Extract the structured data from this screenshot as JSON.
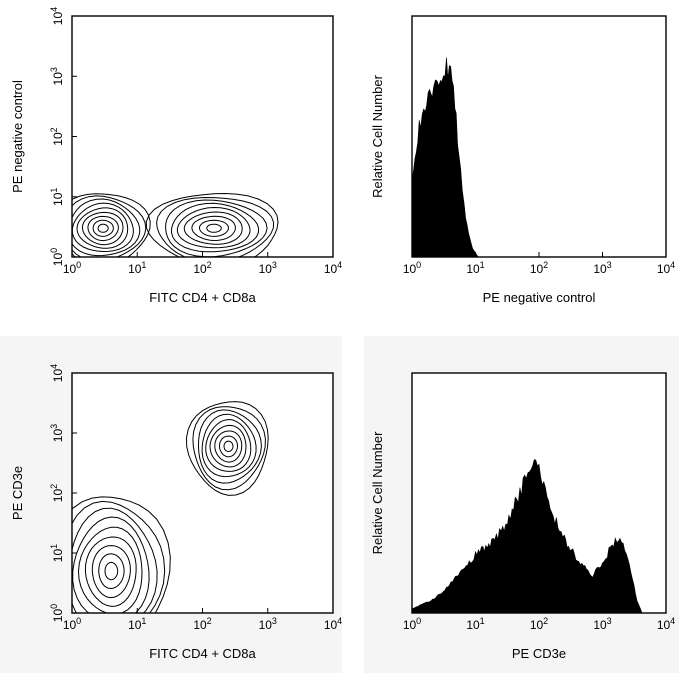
{
  "chart_data": [
    {
      "type": "contour",
      "xlabel": "FITC CD4 + CD8a",
      "ylabel": "PE negative control",
      "x_scale": "log",
      "y_scale": "log",
      "xlim": [
        1,
        10000
      ],
      "ylim": [
        1,
        10000
      ],
      "x_ticks": [
        1,
        10,
        100,
        1000,
        10000
      ],
      "y_ticks": [
        1,
        10,
        100,
        1000,
        10000
      ],
      "populations": [
        {
          "x_center": 3,
          "y_center": 3,
          "x_range": [
            1,
            15
          ],
          "y_range": [
            1,
            12
          ]
        },
        {
          "x_center": 150,
          "y_center": 3,
          "x_range": [
            15,
            600
          ],
          "y_range": [
            1,
            12
          ]
        }
      ]
    },
    {
      "type": "histogram",
      "xlabel": "PE negative control",
      "ylabel": "Relative Cell Number",
      "x_scale": "log",
      "xlim": [
        1,
        10000
      ],
      "x_ticks": [
        1,
        10,
        100,
        1000,
        10000
      ],
      "x": [
        1.0,
        1.3,
        1.7,
        2.2,
        2.8,
        3.5,
        4.5,
        5.5,
        7.0,
        9.0,
        11.0
      ],
      "y": [
        0.36,
        0.62,
        0.74,
        0.8,
        0.86,
        0.92,
        0.84,
        0.48,
        0.18,
        0.04,
        0.0
      ]
    },
    {
      "type": "contour",
      "xlabel": "FITC CD4 + CD8a",
      "ylabel": "PE CD3e",
      "x_scale": "log",
      "y_scale": "log",
      "xlim": [
        1,
        10000
      ],
      "ylim": [
        1,
        10000
      ],
      "x_ticks": [
        1,
        10,
        100,
        1000,
        10000
      ],
      "y_ticks": [
        1,
        10,
        100,
        1000,
        10000
      ],
      "populations": [
        {
          "x_center": 4,
          "y_center": 5,
          "x_range": [
            1,
            30
          ],
          "y_range": [
            1,
            100
          ]
        },
        {
          "x_center": 250,
          "y_center": 600,
          "x_range": [
            60,
            700
          ],
          "y_range": [
            100,
            3000
          ]
        }
      ]
    },
    {
      "type": "histogram",
      "xlabel": "PE CD3e",
      "ylabel": "Relative Cell Number",
      "x_scale": "log",
      "xlim": [
        1,
        10000
      ],
      "x_ticks": [
        1,
        10,
        100,
        1000,
        10000
      ],
      "x": [
        1.0,
        2.0,
        3.5,
        6.0,
        10,
        18,
        30,
        50,
        75,
        100,
        150,
        250,
        400,
        700,
        1000,
        1500,
        2000,
        2800,
        3500,
        4200
      ],
      "y": [
        0.02,
        0.06,
        0.12,
        0.2,
        0.28,
        0.34,
        0.42,
        0.58,
        0.74,
        0.68,
        0.5,
        0.36,
        0.26,
        0.18,
        0.24,
        0.34,
        0.36,
        0.2,
        0.06,
        0.0
      ]
    }
  ]
}
